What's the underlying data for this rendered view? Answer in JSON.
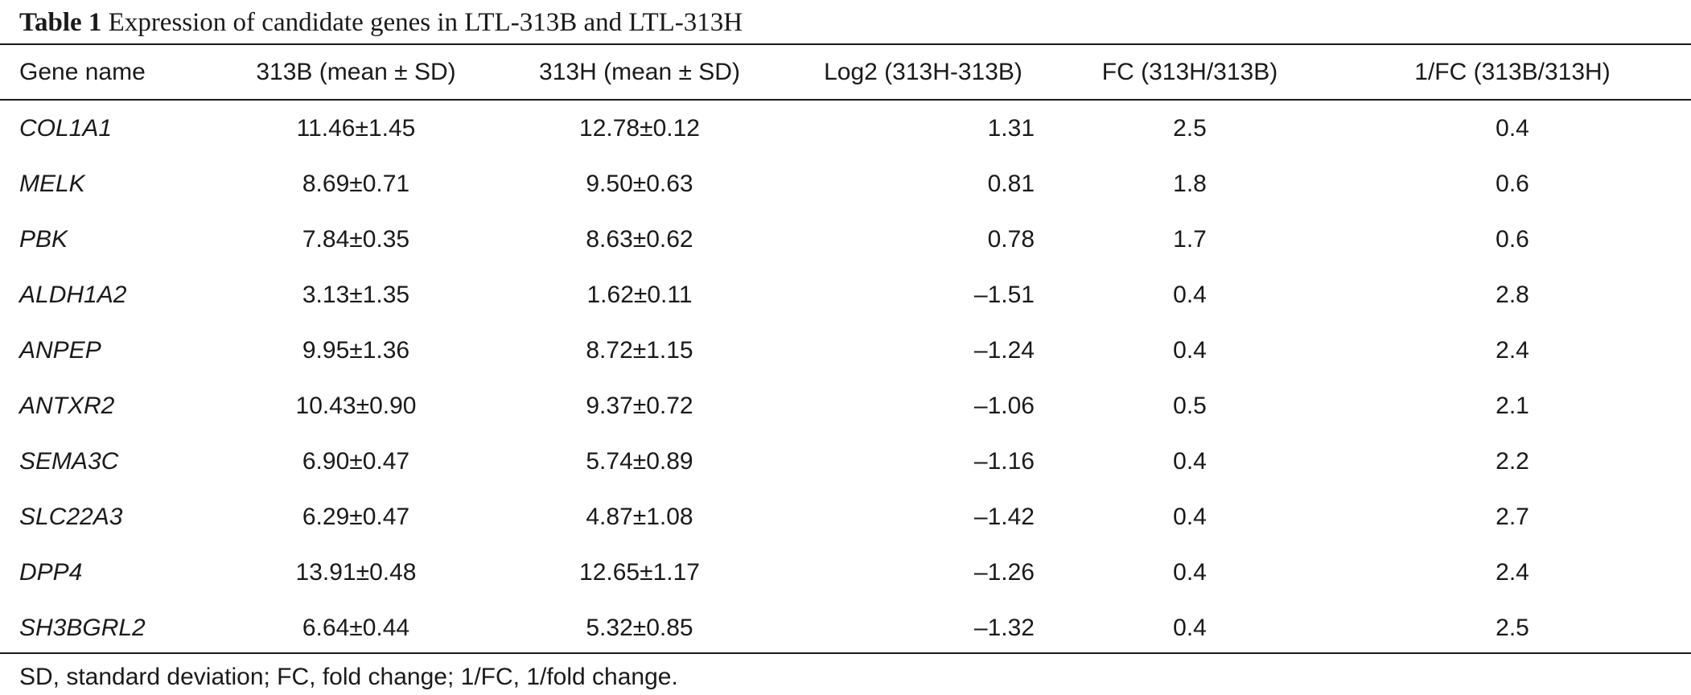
{
  "table": {
    "caption_label": "Table 1",
    "caption_text": "Expression of candidate genes in LTL-313B and LTL-313H",
    "headers": [
      "Gene name",
      "313B (mean ± SD)",
      "313H (mean ± SD)",
      "Log2 (313H-313B)",
      "FC (313H/313B)",
      "1/FC (313B/313H)"
    ],
    "rows": [
      [
        "COL1A1",
        "11.46±1.45",
        "12.78±0.12",
        "1.31",
        "2.5",
        "0.4"
      ],
      [
        "MELK",
        "8.69±0.71",
        "9.50±0.63",
        "0.81",
        "1.8",
        "0.6"
      ],
      [
        "PBK",
        "7.84±0.35",
        "8.63±0.62",
        "0.78",
        "1.7",
        "0.6"
      ],
      [
        "ALDH1A2",
        "3.13±1.35",
        "1.62±0.11",
        "–1.51",
        "0.4",
        "2.8"
      ],
      [
        "ANPEP",
        "9.95±1.36",
        "8.72±1.15",
        "–1.24",
        "0.4",
        "2.4"
      ],
      [
        "ANTXR2",
        "10.43±0.90",
        "9.37±0.72",
        "–1.06",
        "0.5",
        "2.1"
      ],
      [
        "SEMA3C",
        "6.90±0.47",
        "5.74±0.89",
        "–1.16",
        "0.4",
        "2.2"
      ],
      [
        "SLC22A3",
        "6.29±0.47",
        "4.87±1.08",
        "–1.42",
        "0.4",
        "2.7"
      ],
      [
        "DPP4",
        "13.91±0.48",
        "12.65±1.17",
        "–1.26",
        "0.4",
        "2.4"
      ],
      [
        "SH3BGRL2",
        "6.64±0.44",
        "5.32±0.85",
        "–1.32",
        "0.4",
        "2.5"
      ]
    ],
    "footnote": "SD, standard deviation; FC, fold change; 1/FC, 1/fold change."
  }
}
